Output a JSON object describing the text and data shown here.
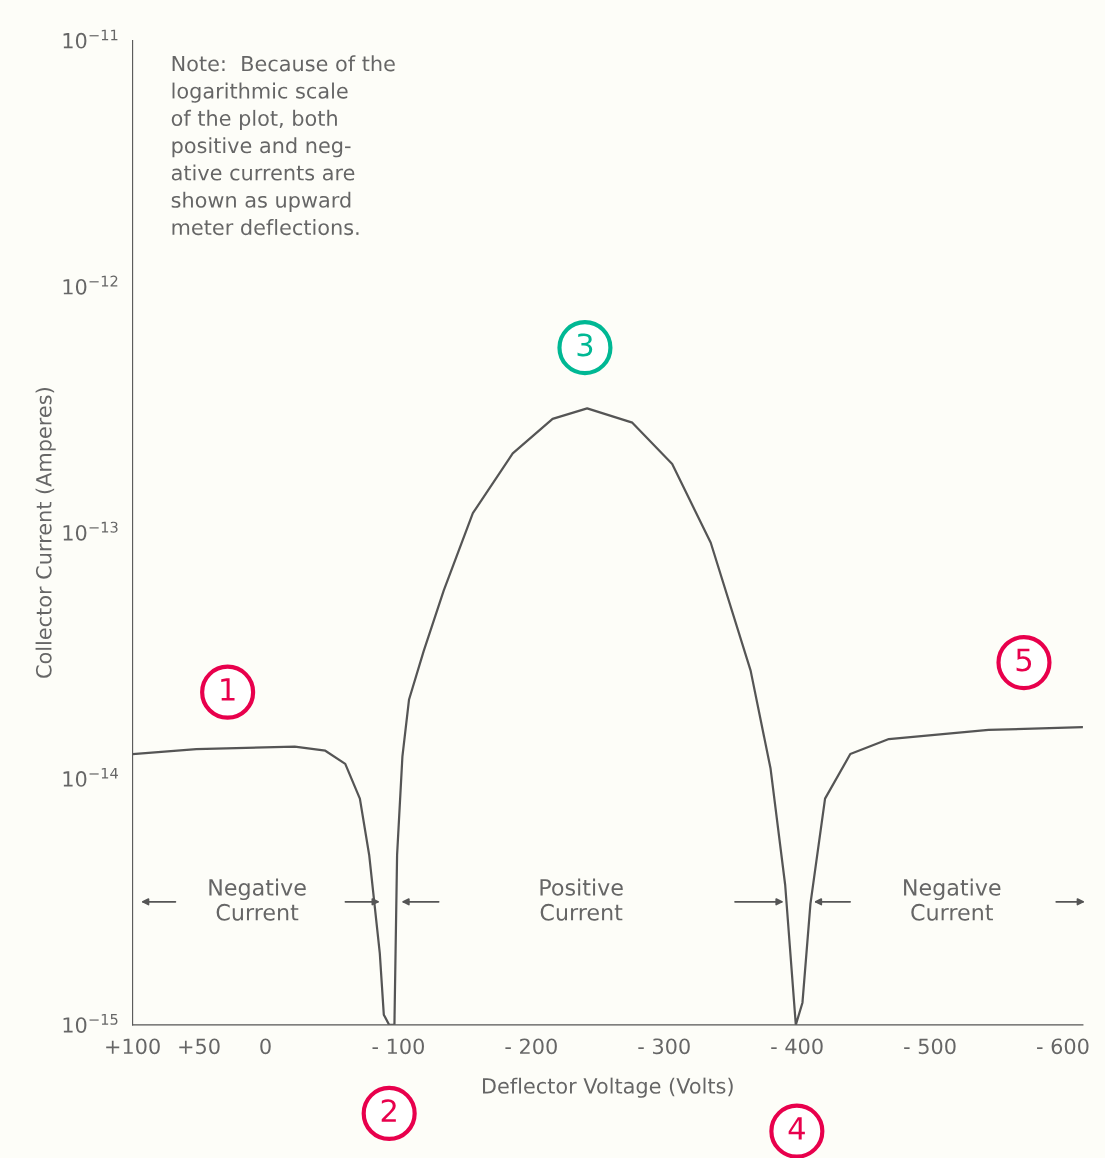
{
  "chart_data": {
    "type": "line",
    "xlabel": "Deflector Voltage (Volts)",
    "ylabel": "Collector Current (Amperes)",
    "log": "y",
    "xlim": [
      100,
      -615
    ],
    "ylim": [
      1e-15,
      1e-11
    ],
    "xticks": [
      {
        "value": 100,
        "label": "+100"
      },
      {
        "value": 50,
        "label": "+50"
      },
      0,
      {
        "value": -100,
        "label": "- 100"
      },
      {
        "value": -200,
        "label": "- 200"
      },
      {
        "value": -300,
        "label": "- 300"
      },
      {
        "value": -400,
        "label": "- 400"
      },
      {
        "value": -500,
        "label": "- 500"
      },
      {
        "value": -600,
        "label": "- 600"
      }
    ],
    "yticks": [
      {
        "value": 1e-15,
        "label": "10$^{−15}$"
      },
      {
        "value": 1e-14,
        "label": "10$^{−14}$"
      },
      {
        "value": 1e-13,
        "label": "10$^{−13}$"
      },
      {
        "value": 1e-12,
        "label": "10$^{−12}$"
      },
      {
        "value": 1e-11,
        "label": "10$^{−11}$"
      }
    ],
    "grid": false,
    "series": [
      {
        "color": "#555555",
        "x": [
          100,
          52,
          -22,
          -45,
          -60,
          -71,
          -78,
          -86,
          -89,
          -93,
          -97,
          -99,
          -103,
          -108,
          -119,
          -134,
          -156,
          -186,
          -216,
          -242,
          -276,
          -306,
          -335,
          -365,
          -380,
          -391,
          -399,
          -404,
          -410,
          -421,
          -440,
          -469,
          -544,
          -615
        ],
        "values": [
          1.26e-14,
          1.32e-14,
          1.35e-14,
          1.3e-14,
          1.15e-14,
          8.3e-15,
          4.9e-15,
          1.95e-15,
          1.1e-15,
          1e-15,
          1e-15,
          4.9e-15,
          1.23e-14,
          2.1e-14,
          3.3e-14,
          5.8e-14,
          1.2e-13,
          2.1e-13,
          2.9e-13,
          3.2e-13,
          2.8e-13,
          1.9e-13,
          9.1e-14,
          2.75e-14,
          1.1e-14,
          3.7e-15,
          1e-15,
          1.23e-15,
          3.1e-15,
          8.3e-15,
          1.26e-14,
          1.45e-14,
          1.58e-14,
          1.62e-14
        ]
      }
    ],
    "annotations": [
      "Note:  Because of the\nlogarithmic scale\nof the plot, both\npositive and neg-\native currents are\nshown as upward\nmeter deflections.",
      "1",
      "2",
      "3",
      "4",
      "5",
      "Negative\nCurrent",
      "Positive\nCurrent",
      "Negative\nCurrent"
    ]
  }
}
